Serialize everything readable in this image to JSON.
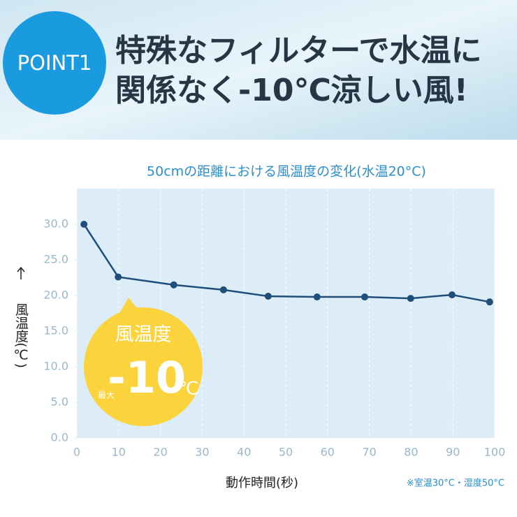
{
  "header": {
    "badge": "POINT1",
    "title_lines": [
      "特殊なフィルターで水温に",
      "関係なく-10℃涼しい風!"
    ]
  },
  "chart_data": {
    "type": "line",
    "title": "50cmの距離における風温度の変化(水温20°C)",
    "xlabel": "動作時間(秒)",
    "ylabel": "風温度(℃)",
    "note": "※室温30°C・湿度50°C",
    "badge": {
      "label": "風温度",
      "prefix": "最大",
      "value": "-10",
      "unit": "℃"
    },
    "x": [
      1.7,
      9.9,
      23.2,
      35.1,
      45.8,
      57.5,
      68.9,
      79.9,
      89.8,
      98.8
    ],
    "series": [
      {
        "name": "風温度",
        "color": "#1f4e79",
        "values": [
          30,
          22.6,
          21.5,
          20.8,
          19.9,
          19.8,
          19.8,
          19.6,
          20.1,
          19.1
        ]
      }
    ],
    "xlim": [
      0,
      100
    ],
    "ylim": [
      0,
      35
    ],
    "xticks": [
      0,
      10,
      20,
      30,
      40,
      50,
      60,
      70,
      80,
      90,
      100
    ],
    "yticks": [
      {
        "value": 0,
        "label": "0.0"
      },
      {
        "value": 5,
        "label": "5.0"
      },
      {
        "value": 10,
        "label": "10.0"
      },
      {
        "value": 15,
        "label": "15.0"
      },
      {
        "value": 20,
        "label": "20.0"
      },
      {
        "value": 25,
        "label": "25.0"
      },
      {
        "value": 30,
        "label": "30.0"
      }
    ],
    "grid": true
  }
}
